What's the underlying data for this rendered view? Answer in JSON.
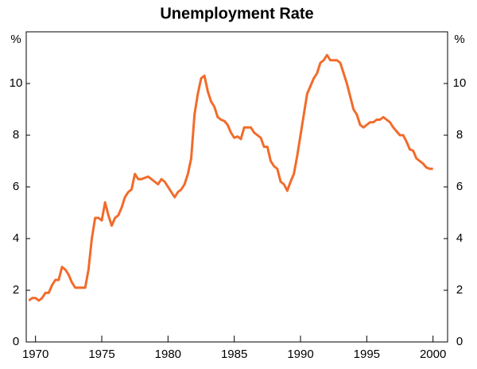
{
  "chart_data": {
    "type": "line",
    "title": "Unemployment Rate",
    "y_label": "%",
    "y2_label": "%",
    "x": [
      1969.5,
      1969.75,
      1970,
      1970.25,
      1970.5,
      1970.75,
      1971,
      1971.25,
      1971.5,
      1971.75,
      1972,
      1972.25,
      1972.5,
      1972.75,
      1973,
      1973.25,
      1973.5,
      1973.75,
      1974,
      1974.25,
      1974.5,
      1974.75,
      1975,
      1975.25,
      1975.5,
      1975.75,
      1976,
      1976.25,
      1976.5,
      1976.75,
      1977,
      1977.25,
      1977.5,
      1977.75,
      1978,
      1978.25,
      1978.5,
      1978.75,
      1979,
      1979.25,
      1979.5,
      1979.75,
      1980,
      1980.25,
      1980.5,
      1980.75,
      1981,
      1981.25,
      1981.5,
      1981.75,
      1982,
      1982.25,
      1982.5,
      1982.75,
      1983,
      1983.25,
      1983.5,
      1983.75,
      1984,
      1984.25,
      1984.5,
      1984.75,
      1985,
      1985.25,
      1985.5,
      1985.75,
      1986,
      1986.25,
      1986.5,
      1986.75,
      1987,
      1987.25,
      1987.5,
      1987.75,
      1988,
      1988.25,
      1988.5,
      1988.75,
      1989,
      1989.25,
      1989.5,
      1989.75,
      1990,
      1990.25,
      1990.5,
      1990.75,
      1991,
      1991.25,
      1991.5,
      1991.75,
      1992,
      1992.25,
      1992.5,
      1992.75,
      1993,
      1993.25,
      1993.5,
      1993.75,
      1994,
      1994.25,
      1994.5,
      1994.75,
      1995,
      1995.25,
      1995.5,
      1995.75,
      1996,
      1996.25,
      1996.5,
      1996.75,
      1997,
      1997.25,
      1997.5,
      1997.75,
      1998,
      1998.25,
      1998.5,
      1998.75,
      1999,
      1999.25,
      1999.5,
      1999.75,
      2000
    ],
    "series": [
      {
        "name": "Unemployment rate",
        "color": "#f26b2a",
        "values": [
          1.6,
          1.7,
          1.7,
          1.6,
          1.7,
          1.9,
          1.9,
          2.2,
          2.4,
          2.4,
          2.9,
          2.8,
          2.6,
          2.3,
          2.1,
          2.1,
          2.1,
          2.1,
          2.8,
          4.0,
          4.8,
          4.8,
          4.7,
          5.4,
          4.9,
          4.5,
          4.8,
          4.9,
          5.2,
          5.6,
          5.8,
          5.9,
          6.5,
          6.3,
          6.3,
          6.35,
          6.4,
          6.3,
          6.2,
          6.1,
          6.3,
          6.2,
          6.0,
          5.8,
          5.6,
          5.8,
          5.9,
          6.1,
          6.5,
          7.1,
          8.8,
          9.6,
          10.2,
          10.3,
          9.7,
          9.3,
          9.1,
          8.7,
          8.6,
          8.55,
          8.4,
          8.1,
          7.9,
          7.95,
          7.85,
          8.3,
          8.3,
          8.3,
          8.1,
          8.0,
          7.9,
          7.55,
          7.55,
          7.0,
          6.8,
          6.7,
          6.2,
          6.1,
          5.85,
          6.2,
          6.5,
          7.2,
          8.0,
          8.8,
          9.6,
          9.9,
          10.2,
          10.4,
          10.8,
          10.9,
          11.1,
          10.9,
          10.9,
          10.9,
          10.8,
          10.4,
          10.0,
          9.5,
          9.0,
          8.8,
          8.4,
          8.3,
          8.4,
          8.5,
          8.5,
          8.6,
          8.6,
          8.7,
          8.6,
          8.5,
          8.3,
          8.15,
          8.0,
          8.0,
          7.75,
          7.45,
          7.4,
          7.1,
          7.0,
          6.9,
          6.75,
          6.7,
          6.7
        ]
      }
    ],
    "xlim": [
      1969.3,
      2001.1
    ],
    "xticks": [
      1970,
      1975,
      1980,
      1985,
      1990,
      1995,
      2000
    ],
    "ylim": [
      0,
      12
    ],
    "yticks": [
      0,
      2,
      4,
      6,
      8,
      10
    ],
    "y2lim": [
      0,
      12
    ],
    "y2ticks": [
      0,
      2,
      4,
      6,
      8,
      10
    ],
    "grid": false
  }
}
